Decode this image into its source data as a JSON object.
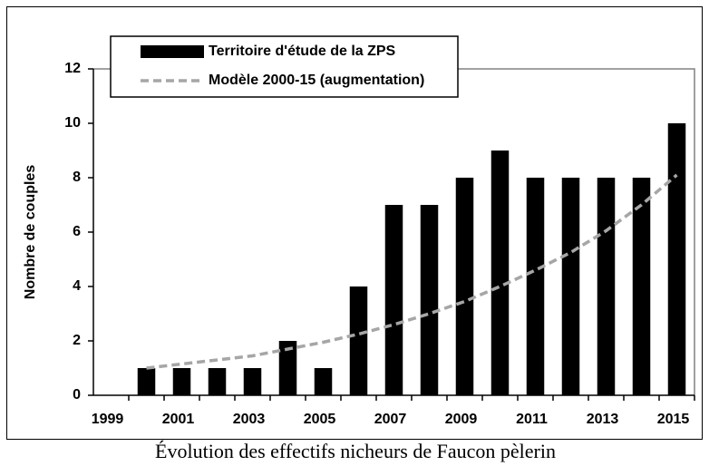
{
  "chart_data": {
    "type": "bar",
    "caption": "Évolution des effectifs nicheurs de Faucon pèlerin",
    "y_label": "Nombre de couples",
    "categories": [
      "1999",
      null,
      "2001",
      null,
      "2003",
      null,
      "2005",
      null,
      "2007",
      null,
      "2009",
      null,
      "2011",
      null,
      "2013",
      null,
      "2015"
    ],
    "series": [
      {
        "name": "Territoire d'étude de la ZPS",
        "type": "bar",
        "color": "#000000",
        "values": [
          null,
          1,
          1,
          1,
          1,
          2,
          1,
          4,
          7,
          7,
          8,
          9,
          8,
          8,
          8,
          8,
          10
        ]
      },
      {
        "name": "Modèle 2000-15 (augmentation)",
        "type": "line",
        "color": "#a6a6a6",
        "dashed": true,
        "values": [
          null,
          1.0,
          1.15,
          1.3,
          1.45,
          1.7,
          1.95,
          2.25,
          2.6,
          3.0,
          3.45,
          4.0,
          4.6,
          5.25,
          6.05,
          7.0,
          8.1
        ]
      }
    ],
    "ylim": [
      0,
      12
    ],
    "yticks": [
      0,
      2,
      4,
      6,
      8,
      10,
      12
    ]
  }
}
